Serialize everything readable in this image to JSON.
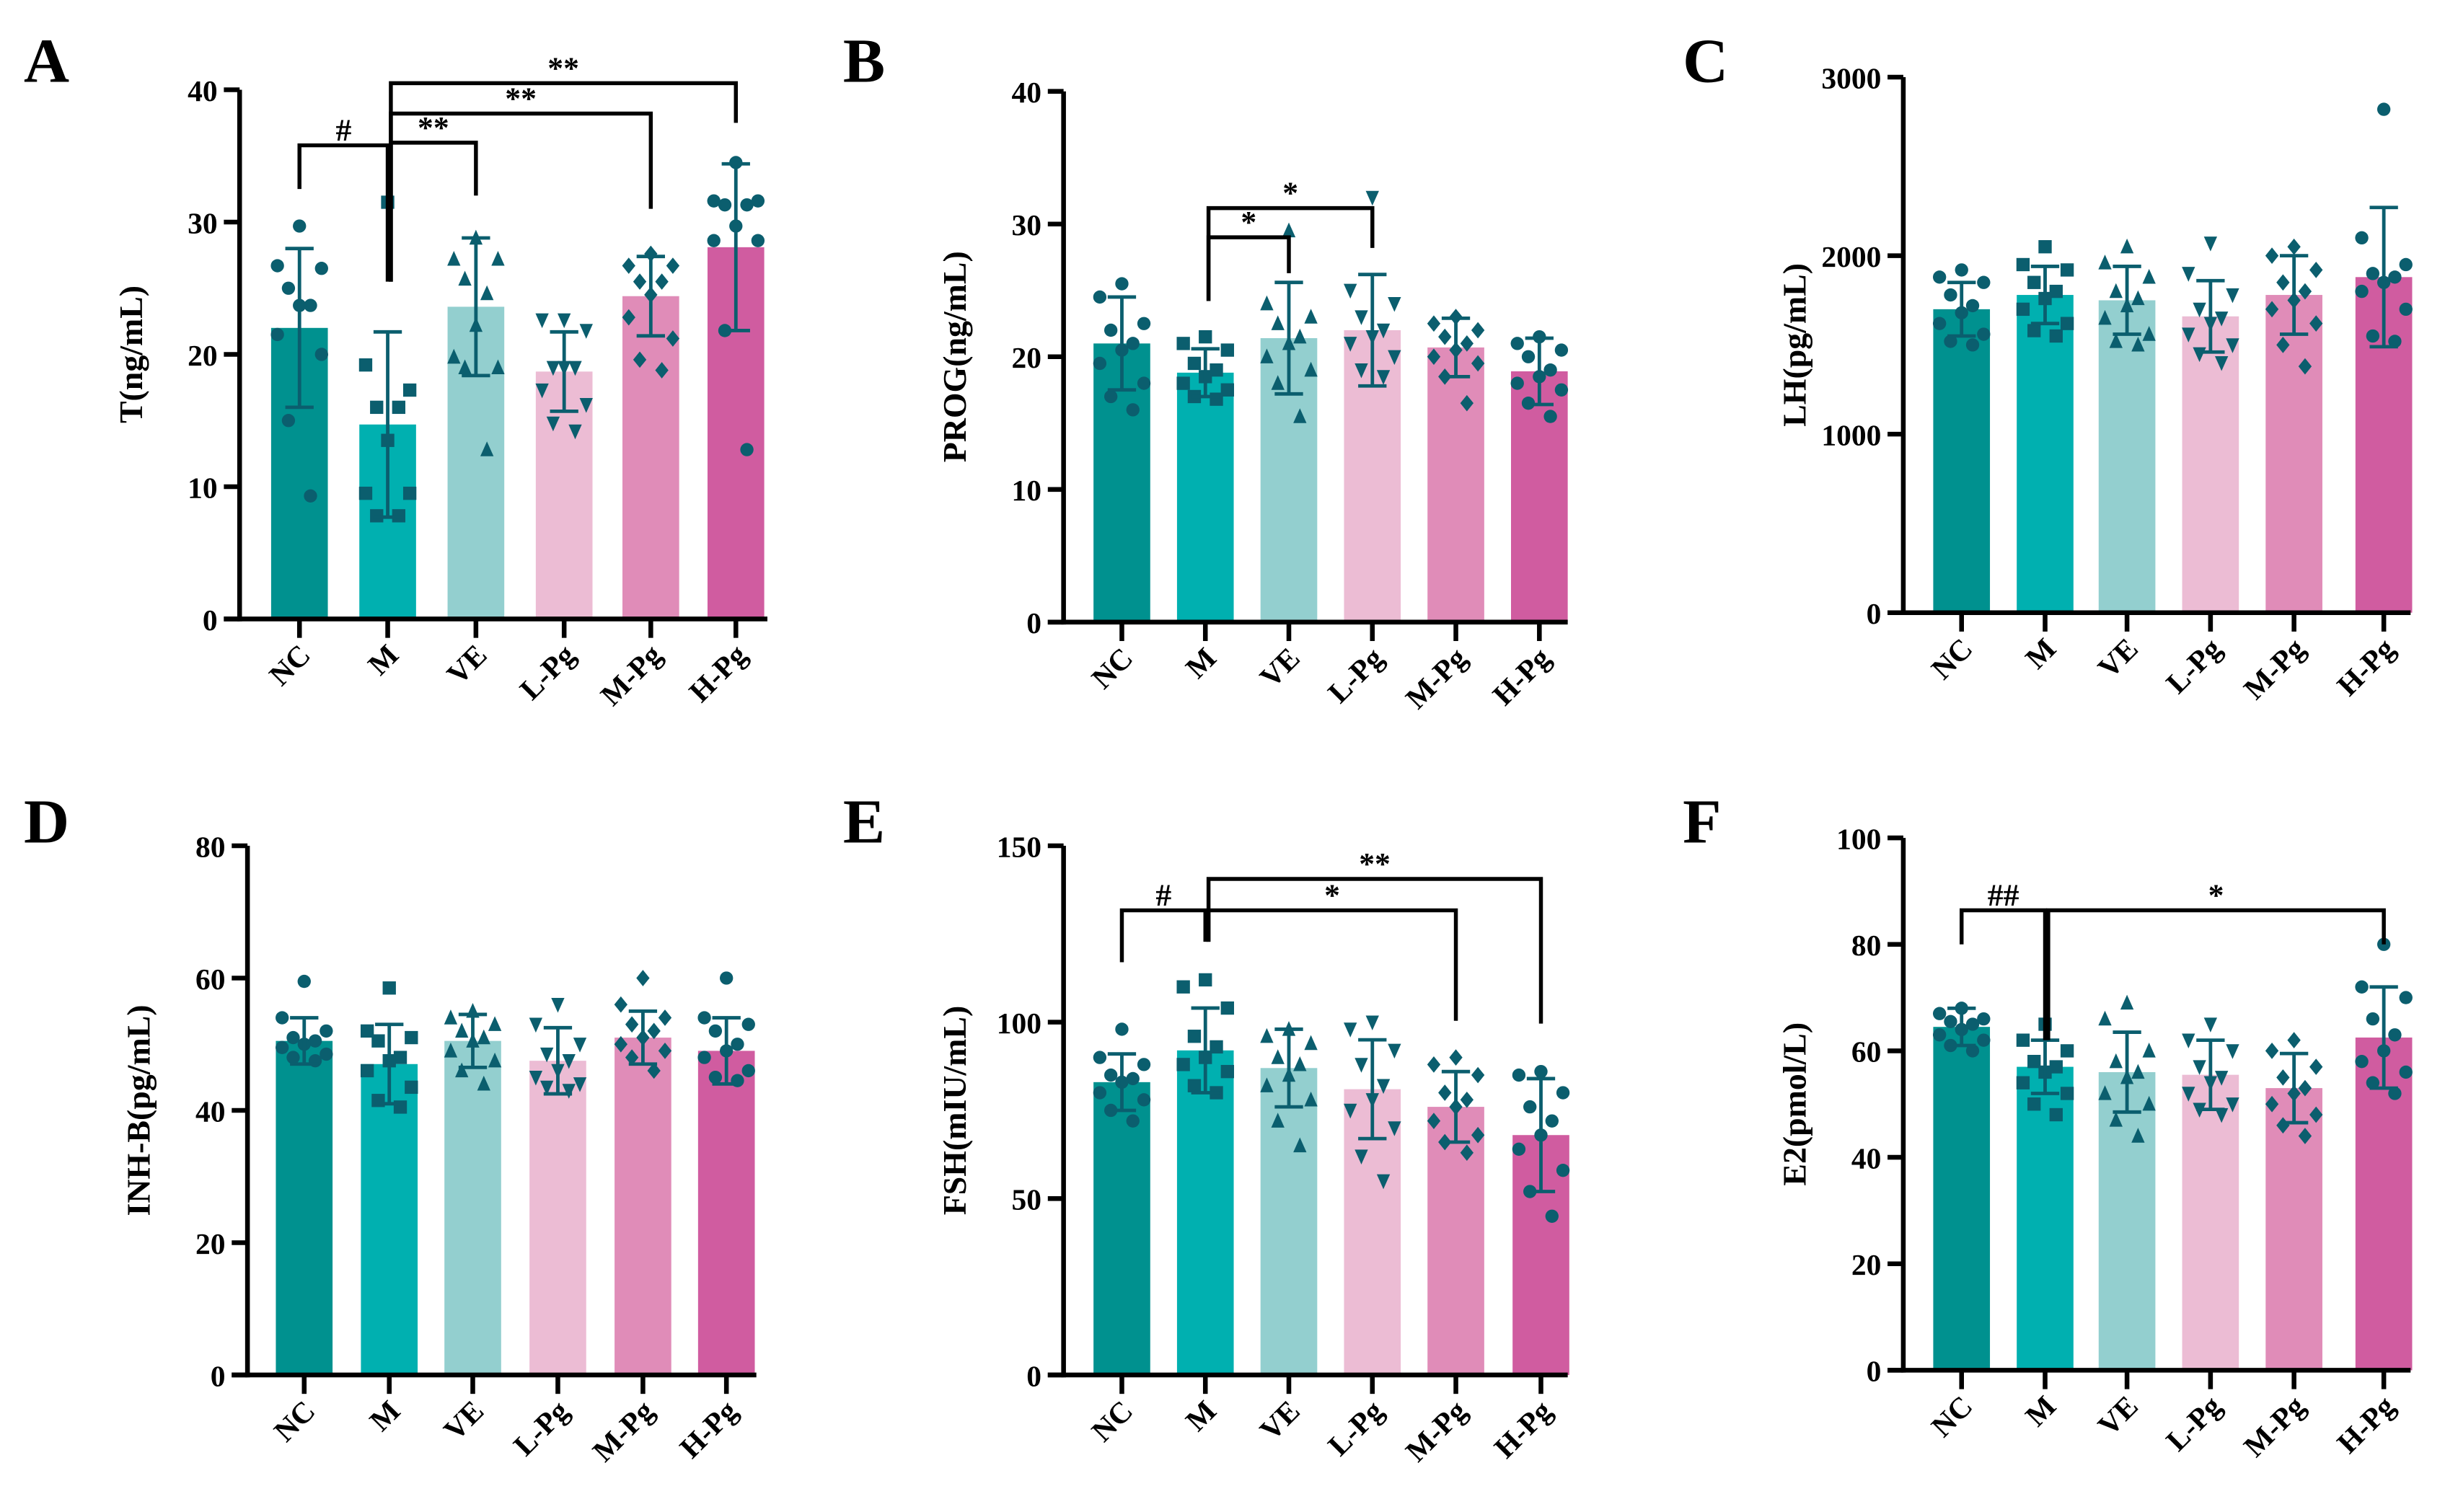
{
  "colors": {
    "groups": [
      "#00918f",
      "#00b0b0",
      "#93cfcf",
      "#ecbcd4",
      "#e08cb8",
      "#d05ca0"
    ],
    "points": "#0b5e6e",
    "axis": "#000000"
  },
  "chart_data": [
    {
      "type": "bar",
      "panel": "A",
      "title": "",
      "ylabel": "T(ng/mL)",
      "ylim": [
        0,
        40
      ],
      "ytick_step": 10,
      "categories": [
        "NC",
        "M",
        "VE",
        "L-Pg",
        "M-Pg",
        "H-Pg"
      ],
      "means": [
        22,
        14.7,
        23.6,
        18.7,
        24.4,
        28.1
      ],
      "sd": [
        6,
        7,
        5.2,
        3,
        3,
        6.3
      ],
      "points": [
        [
          29.7,
          26.7,
          26.5,
          25,
          23.7,
          23.7,
          21.5,
          20,
          15,
          9.3
        ],
        [
          31.5,
          19.2,
          17.3,
          16,
          16,
          13.5,
          9.5,
          9.5,
          7.8,
          7.8
        ],
        [
          28.8,
          27.2,
          27.2,
          25.7,
          24.6,
          22.2,
          19.8,
          19,
          19,
          12.8
        ],
        [
          22.6,
          22.6,
          21.8,
          19,
          19,
          19,
          17.3,
          16.2,
          14.8,
          14.2
        ],
        [
          27.6,
          26.7,
          26.7,
          25.5,
          25.5,
          24.5,
          22.8,
          21.2,
          19.6,
          18.8
        ],
        [
          34.5,
          31.6,
          31.6,
          31.3,
          31.3,
          29.7,
          28.6,
          28.6,
          21.8,
          12.8
        ]
      ],
      "significance": [
        {
          "from": 0,
          "to": 1,
          "label": "#",
          "y": 35.8,
          "ends": [
            32.5,
            25.5
          ]
        },
        {
          "from": 1,
          "to": 2,
          "label": "**",
          "y": 36,
          "ends": [
            25.5,
            32
          ]
        },
        {
          "from": 1,
          "to": 4,
          "label": "**",
          "y": 38.2,
          "ends": [
            25.5,
            31
          ]
        },
        {
          "from": 1,
          "to": 5,
          "label": "**",
          "y": 40.5,
          "ends": [
            25.5,
            37.5
          ]
        }
      ]
    },
    {
      "type": "bar",
      "panel": "B",
      "title": "",
      "ylabel": "PROG(ng/mL)",
      "ylim": [
        0,
        40
      ],
      "ytick_step": 10,
      "categories": [
        "NC",
        "M",
        "VE",
        "L-Pg",
        "M-Pg",
        "H-Pg"
      ],
      "means": [
        21,
        18.8,
        21.4,
        22,
        20.7,
        18.9
      ],
      "sd": [
        3.5,
        1.8,
        4.2,
        4.2,
        2.2,
        2.5
      ],
      "points": [
        [
          25.5,
          24.5,
          22.5,
          22,
          21,
          20.5,
          19.5,
          18,
          17,
          16
        ],
        [
          21.5,
          21,
          20.5,
          19.5,
          19,
          18.5,
          18,
          17.5,
          17,
          16.8
        ],
        [
          29.5,
          24,
          23,
          22.5,
          21.5,
          21,
          20,
          19,
          18,
          15.5
        ],
        [
          32,
          25,
          24,
          23,
          22,
          21.5,
          21,
          20,
          19,
          18.5
        ],
        [
          23,
          22.5,
          22,
          21.5,
          21,
          20.5,
          20,
          19.5,
          18.5,
          16.5
        ],
        [
          21.5,
          21,
          20.5,
          20,
          19,
          18.5,
          18,
          17.5,
          16.5,
          15.5
        ]
      ],
      "significance": [
        {
          "from": 1,
          "to": 2,
          "label": "*",
          "y": 29,
          "ends": [
            24.2,
            26.3
          ]
        },
        {
          "from": 1,
          "to": 3,
          "label": "*",
          "y": 31.2,
          "ends": [
            24.2,
            28.2
          ]
        }
      ]
    },
    {
      "type": "bar",
      "panel": "C",
      "title": "",
      "ylabel": "LH(pg/mL)",
      "ylim": [
        0,
        3000
      ],
      "ytick_step": 1000,
      "categories": [
        "NC",
        "M",
        "VE",
        "L-Pg",
        "M-Pg",
        "H-Pg"
      ],
      "means": [
        1700,
        1780,
        1750,
        1660,
        1780,
        1880
      ],
      "sd": [
        150,
        160,
        190,
        200,
        220,
        390
      ],
      "points": [
        [
          1920,
          1880,
          1850,
          1780,
          1720,
          1680,
          1620,
          1560,
          1520,
          1500
        ],
        [
          2050,
          1950,
          1920,
          1850,
          1800,
          1760,
          1700,
          1620,
          1580,
          1550
        ],
        [
          2050,
          1960,
          1880,
          1800,
          1760,
          1720,
          1650,
          1560,
          1520,
          1500
        ],
        [
          2070,
          1900,
          1780,
          1700,
          1650,
          1620,
          1560,
          1500,
          1450,
          1400
        ],
        [
          2050,
          2000,
          1920,
          1850,
          1800,
          1750,
          1700,
          1620,
          1500,
          1380
        ],
        [
          2820,
          2100,
          1950,
          1900,
          1880,
          1850,
          1800,
          1700,
          1550,
          1520
        ]
      ],
      "significance": []
    },
    {
      "type": "bar",
      "panel": "D",
      "title": "",
      "ylabel": "INH-B(pg/mL)",
      "ylim": [
        0,
        80
      ],
      "ytick_step": 20,
      "categories": [
        "NC",
        "M",
        "VE",
        "L-Pg",
        "M-Pg",
        "H-Pg"
      ],
      "means": [
        50.5,
        47,
        50.5,
        47.5,
        51,
        49
      ],
      "sd": [
        3.5,
        6,
        4,
        5,
        4,
        5
      ],
      "points": [
        [
          59.5,
          54,
          52,
          51,
          50.5,
          50,
          49.5,
          48.5,
          48,
          47.5
        ],
        [
          58.5,
          52,
          51,
          50.5,
          48,
          47.5,
          46,
          43.5,
          41.5,
          40.5
        ],
        [
          55,
          54,
          53,
          52,
          51,
          50.5,
          49,
          47.5,
          46,
          44
        ],
        [
          56,
          53,
          50,
          48.5,
          47.5,
          46,
          45,
          44,
          43.5,
          43
        ],
        [
          60,
          56,
          54,
          53,
          52,
          51,
          50,
          49,
          48,
          46
        ],
        [
          60,
          54,
          53,
          52,
          50,
          49,
          48,
          46,
          45,
          44.5
        ]
      ],
      "significance": []
    },
    {
      "type": "bar",
      "panel": "E",
      "title": "",
      "ylabel": "FSH(mIU/mL)",
      "ylim": [
        0,
        150
      ],
      "ytick_step": 50,
      "categories": [
        "NC",
        "M",
        "VE",
        "L-Pg",
        "M-Pg",
        "H-Pg"
      ],
      "means": [
        83,
        92,
        87,
        81,
        76,
        68
      ],
      "sd": [
        8,
        12,
        11,
        14,
        10,
        16
      ],
      "points": [
        [
          98,
          90,
          88,
          85,
          84,
          83,
          80,
          78,
          75,
          72
        ],
        [
          112,
          110,
          104,
          96,
          93,
          90,
          88,
          86,
          82,
          80
        ],
        [
          98,
          96,
          94,
          90,
          88,
          85,
          82,
          78,
          72,
          65
        ],
        [
          100,
          98,
          92,
          88,
          82,
          78,
          75,
          70,
          62,
          55
        ],
        [
          90,
          88,
          85,
          80,
          78,
          76,
          72,
          68,
          66,
          63
        ],
        [
          86,
          85,
          80,
          76,
          72,
          68,
          64,
          58,
          52,
          45
        ]
      ],
      "significance": [
        {
          "from": 0,
          "to": 1,
          "label": "#",
          "y": 131.7,
          "ends": [
            117,
            122.8
          ]
        },
        {
          "from": 1,
          "to": 4,
          "label": "*",
          "y": 131.7,
          "ends": [
            122.8,
            100.4
          ]
        },
        {
          "from": 1,
          "to": 5,
          "label": "**",
          "y": 140.6,
          "ends": [
            122.8,
            99.6
          ]
        }
      ]
    },
    {
      "type": "bar",
      "panel": "F",
      "title": "",
      "ylabel": "E2(pmol/L)",
      "ylim": [
        0,
        100
      ],
      "ytick_step": 20,
      "categories": [
        "NC",
        "M",
        "VE",
        "L-Pg",
        "M-Pg",
        "H-Pg"
      ],
      "means": [
        64.5,
        57,
        56,
        55.5,
        53,
        62.5
      ],
      "sd": [
        3.5,
        5,
        7.5,
        6.5,
        6.5,
        9.5
      ],
      "points": [
        [
          68,
          67,
          66,
          65.5,
          65,
          64,
          63,
          62,
          61,
          60
        ],
        [
          65,
          62,
          60,
          58,
          57,
          56,
          54,
          52,
          50,
          48
        ],
        [
          69,
          66,
          60,
          58,
          56,
          55,
          52,
          50,
          47,
          44
        ],
        [
          65,
          62,
          60,
          57,
          55,
          54,
          52,
          50,
          49,
          48
        ],
        [
          62,
          60,
          57,
          55,
          53,
          52,
          50,
          48,
          46,
          44
        ],
        [
          80,
          72,
          70,
          66,
          63,
          60,
          58,
          56,
          54,
          52
        ]
      ],
      "significance": [
        {
          "from": 0,
          "to": 1,
          "label": "##",
          "y": 86.4,
          "ends": [
            80,
            62
          ]
        },
        {
          "from": 1,
          "to": 5,
          "label": "*",
          "y": 86.4,
          "ends": [
            62,
            80
          ]
        }
      ]
    }
  ]
}
